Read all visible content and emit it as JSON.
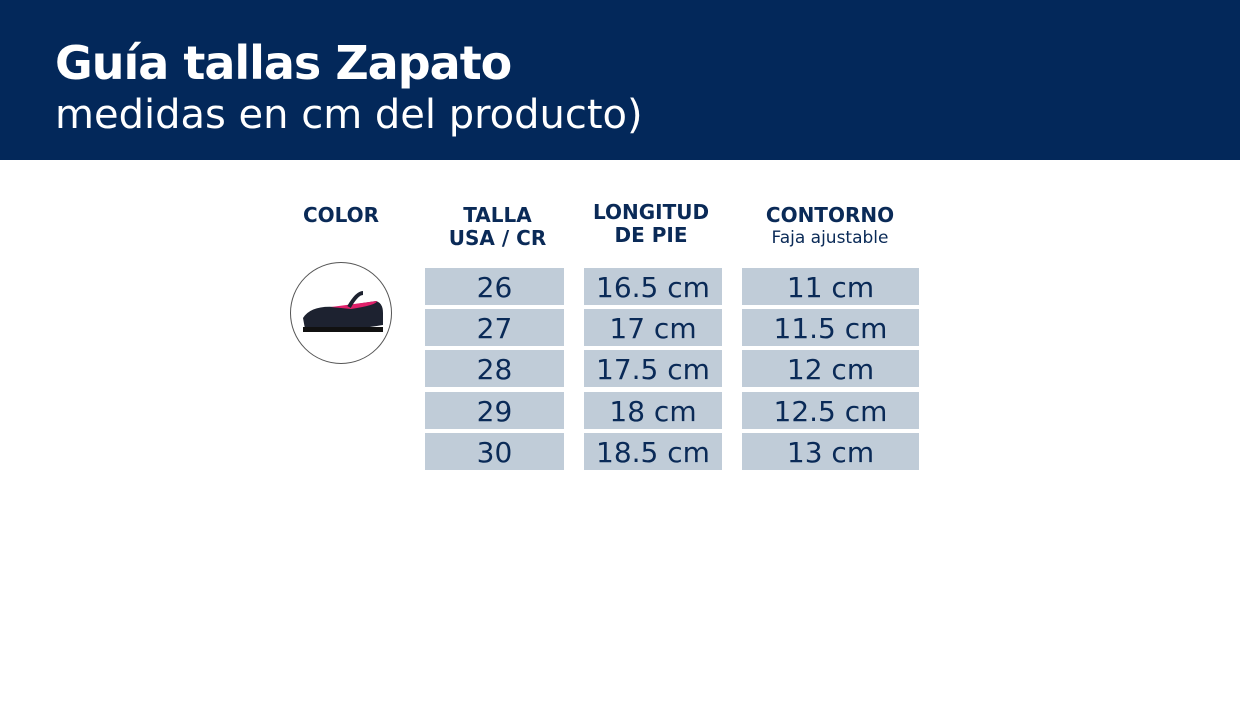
{
  "header": {
    "title": "Guía tallas Zapato",
    "subtitle": "medidas en cm del producto)"
  },
  "columns": {
    "color": "COLOR",
    "talla_1": "TALLA",
    "talla_2": "USA / CR",
    "longitud_1": "LONGITUD",
    "longitud_2": "DE PIE",
    "contorno": "CONTORNO",
    "contorno_sub": "Faja ajustable"
  },
  "rows": [
    {
      "talla": "26",
      "longitud": "16.5 cm",
      "contorno": "11 cm"
    },
    {
      "talla": "27",
      "longitud": "17 cm",
      "contorno": "11.5 cm"
    },
    {
      "talla": "28",
      "longitud": "17.5 cm",
      "contorno": "12 cm"
    },
    {
      "talla": "29",
      "longitud": "18 cm",
      "contorno": "12.5 cm"
    },
    {
      "talla": "30",
      "longitud": "18.5 cm",
      "contorno": "13 cm"
    }
  ],
  "colors": {
    "banner": "#03285a",
    "cell": "#c0ccd8",
    "text": "#0a2a57"
  }
}
